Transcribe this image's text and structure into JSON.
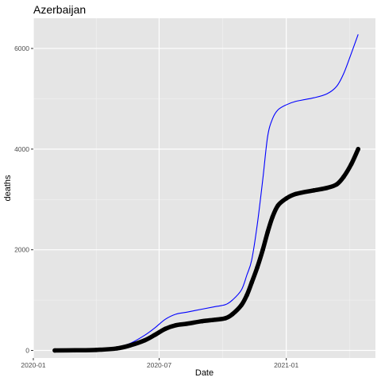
{
  "chart_data": {
    "type": "line",
    "title": "Azerbaijan",
    "xlabel": "Date",
    "ylabel": "deaths",
    "xlim": [
      "2020-01-01",
      "2021-05-10"
    ],
    "ylim": [
      -150,
      6600
    ],
    "x_ticks": [
      {
        "date": "2020-01-01",
        "label": "2020-01"
      },
      {
        "date": "2020-07-01",
        "label": "2020-07"
      },
      {
        "date": "2021-01-01",
        "label": "2021-01"
      }
    ],
    "y_ticks": [
      {
        "value": 0,
        "label": "0"
      },
      {
        "value": 2000,
        "label": "2000"
      },
      {
        "value": 4000,
        "label": "4000"
      },
      {
        "value": 6000,
        "label": "6000"
      }
    ],
    "grid": true,
    "background": "#e5e5e5",
    "series": [
      {
        "style": "line",
        "color": "#0000ff",
        "points": [
          [
            "2020-02-01",
            0
          ],
          [
            "2020-03-01",
            10
          ],
          [
            "2020-04-01",
            30
          ],
          [
            "2020-05-01",
            70
          ],
          [
            "2020-05-20",
            140
          ],
          [
            "2020-06-10",
            300
          ],
          [
            "2020-06-25",
            450
          ],
          [
            "2020-07-10",
            620
          ],
          [
            "2020-07-25",
            720
          ],
          [
            "2020-08-10",
            760
          ],
          [
            "2020-09-01",
            820
          ],
          [
            "2020-09-20",
            870
          ],
          [
            "2020-10-05",
            910
          ],
          [
            "2020-10-15",
            1000
          ],
          [
            "2020-10-28",
            1200
          ],
          [
            "2020-11-05",
            1500
          ],
          [
            "2020-11-12",
            1800
          ],
          [
            "2020-11-20",
            2500
          ],
          [
            "2020-11-28",
            3400
          ],
          [
            "2020-12-05",
            4250
          ],
          [
            "2020-12-12",
            4600
          ],
          [
            "2020-12-20",
            4780
          ],
          [
            "2021-01-01",
            4880
          ],
          [
            "2021-01-15",
            4950
          ],
          [
            "2021-02-10",
            5020
          ],
          [
            "2021-03-01",
            5100
          ],
          [
            "2021-03-15",
            5250
          ],
          [
            "2021-03-25",
            5500
          ],
          [
            "2021-04-05",
            5900
          ],
          [
            "2021-04-15",
            6280
          ]
        ]
      },
      {
        "style": "points",
        "color": "#000000",
        "points": [
          [
            "2020-02-01",
            0
          ],
          [
            "2020-03-01",
            3
          ],
          [
            "2020-04-01",
            10
          ],
          [
            "2020-05-01",
            40
          ],
          [
            "2020-05-20",
            100
          ],
          [
            "2020-06-10",
            200
          ],
          [
            "2020-06-25",
            310
          ],
          [
            "2020-07-10",
            430
          ],
          [
            "2020-07-25",
            500
          ],
          [
            "2020-08-10",
            530
          ],
          [
            "2020-09-01",
            580
          ],
          [
            "2020-09-20",
            610
          ],
          [
            "2020-10-05",
            640
          ],
          [
            "2020-10-15",
            720
          ],
          [
            "2020-10-28",
            900
          ],
          [
            "2020-11-05",
            1100
          ],
          [
            "2020-11-12",
            1350
          ],
          [
            "2020-11-20",
            1650
          ],
          [
            "2020-11-28",
            2000
          ],
          [
            "2020-12-05",
            2350
          ],
          [
            "2020-12-12",
            2650
          ],
          [
            "2020-12-20",
            2880
          ],
          [
            "2021-01-01",
            3020
          ],
          [
            "2021-01-15",
            3110
          ],
          [
            "2021-02-10",
            3180
          ],
          [
            "2021-03-01",
            3230
          ],
          [
            "2021-03-15",
            3300
          ],
          [
            "2021-03-25",
            3450
          ],
          [
            "2021-04-05",
            3700
          ],
          [
            "2021-04-15",
            4000
          ]
        ]
      }
    ]
  }
}
